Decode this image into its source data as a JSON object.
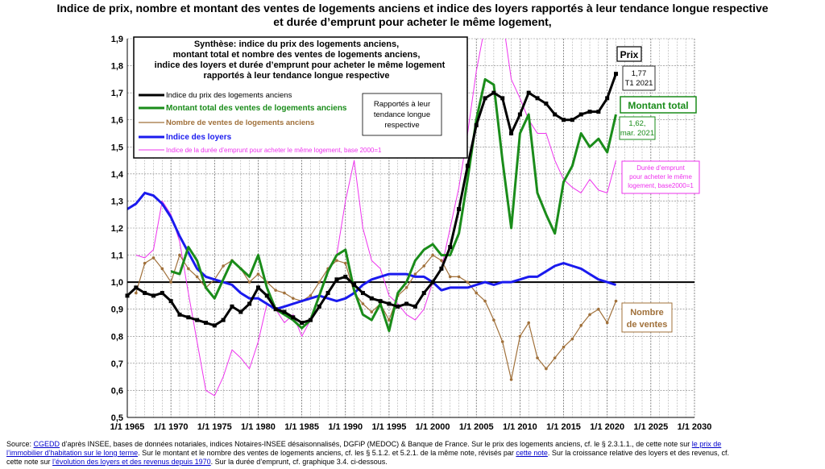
{
  "title_line1": "Indice de prix, nombre et montant des ventes de logements anciens et indice des loyers rapportés à leur tendance longue respective",
  "title_line2": "et durée d’emprunt pour acheter le même logement,",
  "source": {
    "l1_a": "Source: ",
    "l1_cgedd": "CGEDD",
    "l1_b": " d’après INSEE, bases de données notariales, indices Notaires-INSEE désaisonnalisés, DGFiP (MEDOC) & Banque de France.  Sur le prix des logements anciens, cf. le §  2.3.1.1., de cette note sur ",
    "l1_link": "le prix de",
    "l2_link": "l’immobilier d’habitation sur le long terme",
    "l2_b": ".  Sur le montant et le nombre des ventes de logements anciens, cf. les § 5.1.2. et 5.2.1. de la même note, révisés par ",
    "l2_link2": "cette note",
    "l2_c": ".  Sur la croissance relative des loyers et des revenus, cf.",
    "l3_a": "cette note sur ",
    "l3_link": "l’évolution des loyers et des revenus depuis 1970",
    "l3_b": ".  Sur la durée d’emprunt, cf. graphique 3.4. ci-dessous."
  },
  "synthese": [
    "Synthèse: indice du prix des logements anciens,",
    "montant total et nombre des ventes de logements anciens,",
    "indice des loyers et durée d’emprunt pour acheter le même logement",
    "rapportés à leur tendance longue respective"
  ],
  "rapportes_box": [
    "Rapportés à leur",
    "tendance longue",
    "respective"
  ],
  "annotations": {
    "prix": "Prix",
    "prix_value": [
      "1,77",
      "T1 2021"
    ],
    "montant": "Montant total",
    "montant_value": [
      "1,62,",
      "mar. 2021"
    ],
    "duree": [
      "Durée d’emprunt",
      "pour acheter le même",
      "logement, base2000=1"
    ],
    "nombre": [
      "Nombre",
      "de ventes"
    ]
  },
  "colors": {
    "prix": "#000000",
    "montant": "#1a8c1a",
    "nombre": "#a0703a",
    "loyers": "#1a1aee",
    "duree": "#ee33ee"
  },
  "chart_data": {
    "type": "line",
    "ylim": [
      0.5,
      1.9
    ],
    "xlim": [
      1965,
      2030
    ],
    "yticks": [
      "0,5",
      "0,6",
      "0,7",
      "0,8",
      "0,9",
      "1,0",
      "1,1",
      "1,2",
      "1,3",
      "1,4",
      "1,5",
      "1,6",
      "1,7",
      "1,8",
      "1,9"
    ],
    "xticks": [
      "1/1 1965",
      "1/1 1970",
      "1/1 1975",
      "1/1 1980",
      "1/1 1985",
      "1/1 1990",
      "1/1 1995",
      "1/1 2000",
      "1/1 2005",
      "1/1 2010",
      "1/1 2015",
      "1/1 2020",
      "1/1 2025",
      "1/1 2030"
    ],
    "series": [
      {
        "name": "Indice du prix des logements anciens",
        "key": "prix",
        "x": [
          1965,
          1966,
          1967,
          1968,
          1969,
          1970,
          1971,
          1972,
          1973,
          1974,
          1975,
          1976,
          1977,
          1978,
          1979,
          1980,
          1981,
          1982,
          1983,
          1984,
          1985,
          1986,
          1987,
          1988,
          1989,
          1990,
          1991,
          1992,
          1993,
          1994,
          1995,
          1996,
          1997,
          1998,
          1999,
          2000,
          2001,
          2002,
          2003,
          2004,
          2005,
          2006,
          2007,
          2008,
          2009,
          2010,
          2011,
          2012,
          2013,
          2014,
          2015,
          2016,
          2017,
          2018,
          2019,
          2020,
          2021
        ],
        "y": [
          0.95,
          0.98,
          0.96,
          0.95,
          0.96,
          0.93,
          0.88,
          0.87,
          0.86,
          0.85,
          0.84,
          0.86,
          0.91,
          0.89,
          0.92,
          0.98,
          0.95,
          0.9,
          0.89,
          0.87,
          0.85,
          0.86,
          0.91,
          0.96,
          1.01,
          1.02,
          0.99,
          0.96,
          0.94,
          0.93,
          0.92,
          0.91,
          0.92,
          0.91,
          0.96,
          1.0,
          1.05,
          1.13,
          1.27,
          1.43,
          1.58,
          1.68,
          1.7,
          1.68,
          1.55,
          1.62,
          1.7,
          1.68,
          1.66,
          1.62,
          1.6,
          1.6,
          1.62,
          1.63,
          1.63,
          1.68,
          1.77
        ]
      },
      {
        "name": "Montant total des ventes de logements anciens",
        "key": "montant",
        "x": [
          1970,
          1971,
          1972,
          1973,
          1974,
          1975,
          1976,
          1977,
          1978,
          1979,
          1980,
          1981,
          1982,
          1983,
          1984,
          1985,
          1986,
          1987,
          1988,
          1989,
          1990,
          1991,
          1992,
          1993,
          1994,
          1995,
          1996,
          1997,
          1998,
          1999,
          2000,
          2001,
          2002,
          2003,
          2004,
          2005,
          2006,
          2007,
          2008,
          2009,
          2010,
          2011,
          2012,
          2013,
          2014,
          2015,
          2016,
          2017,
          2018,
          2019,
          2020,
          2021
        ],
        "y": [
          1.04,
          1.03,
          1.13,
          1.08,
          0.98,
          0.94,
          1.01,
          1.08,
          1.05,
          1.02,
          1.1,
          0.98,
          0.9,
          0.88,
          0.86,
          0.83,
          0.86,
          0.95,
          1.04,
          1.1,
          1.12,
          0.97,
          0.88,
          0.86,
          0.92,
          0.82,
          0.96,
          1.0,
          1.08,
          1.12,
          1.14,
          1.1,
          1.1,
          1.18,
          1.38,
          1.6,
          1.75,
          1.73,
          1.45,
          1.2,
          1.55,
          1.62,
          1.33,
          1.25,
          1.18,
          1.37,
          1.43,
          1.55,
          1.5,
          1.53,
          1.48,
          1.62
        ]
      },
      {
        "name": "Nombre de ventes de logements anciens",
        "key": "nombre",
        "x": [
          1966,
          1967,
          1968,
          1969,
          1970,
          1971,
          1972,
          1973,
          1974,
          1975,
          1976,
          1977,
          1978,
          1979,
          1980,
          1981,
          1982,
          1983,
          1984,
          1985,
          1986,
          1987,
          1988,
          1989,
          1990,
          1991,
          1992,
          1993,
          1994,
          1995,
          1996,
          1997,
          1998,
          1999,
          2000,
          2001,
          2002,
          2003,
          2004,
          2005,
          2006,
          2007,
          2008,
          2009,
          2010,
          2011,
          2012,
          2013,
          2014,
          2015,
          2016,
          2017,
          2018,
          2019,
          2020,
          2021
        ],
        "y": [
          0.96,
          1.07,
          1.09,
          1.05,
          1.0,
          1.1,
          1.05,
          1.02,
          0.98,
          1.01,
          1.06,
          1.08,
          1.05,
          1.0,
          1.03,
          1.0,
          0.97,
          0.96,
          0.94,
          0.93,
          0.95,
          1.0,
          1.05,
          1.08,
          1.07,
          0.96,
          0.92,
          0.89,
          0.92,
          0.86,
          0.95,
          0.98,
          1.03,
          1.06,
          1.1,
          1.08,
          1.02,
          1.02,
          1.0,
          0.96,
          0.93,
          0.86,
          0.78,
          0.64,
          0.8,
          0.85,
          0.72,
          0.68,
          0.72,
          0.76,
          0.79,
          0.84,
          0.88,
          0.9,
          0.85,
          0.93
        ]
      },
      {
        "name": "Indice des loyers",
        "key": "loyers",
        "x": [
          1965,
          1966,
          1967,
          1968,
          1969,
          1970,
          1971,
          1972,
          1973,
          1974,
          1975,
          1976,
          1977,
          1978,
          1979,
          1980,
          1981,
          1982,
          1983,
          1984,
          1985,
          1986,
          1987,
          1988,
          1989,
          1990,
          1991,
          1992,
          1993,
          1994,
          1995,
          1996,
          1997,
          1998,
          1999,
          2000,
          2001,
          2002,
          2003,
          2004,
          2005,
          2006,
          2007,
          2008,
          2009,
          2010,
          2011,
          2012,
          2013,
          2014,
          2015,
          2016,
          2017,
          2018,
          2019,
          2020,
          2021
        ],
        "y": [
          1.27,
          1.29,
          1.33,
          1.32,
          1.29,
          1.24,
          1.17,
          1.11,
          1.05,
          1.02,
          1.01,
          1.0,
          0.99,
          0.96,
          0.94,
          0.94,
          0.92,
          0.9,
          0.91,
          0.92,
          0.93,
          0.94,
          0.95,
          0.94,
          0.93,
          0.94,
          0.96,
          0.99,
          1.01,
          1.02,
          1.03,
          1.03,
          1.03,
          1.02,
          1.02,
          1.0,
          0.97,
          0.98,
          0.98,
          0.98,
          0.99,
          1.0,
          0.99,
          1.0,
          1.0,
          1.01,
          1.02,
          1.02,
          1.04,
          1.06,
          1.07,
          1.06,
          1.05,
          1.03,
          1.01,
          1.0,
          0.99
        ]
      },
      {
        "name": "Indice de la durée d’emprunt pour acheter le même logement, base 2000=1",
        "key": "duree",
        "x": [
          1966,
          1967,
          1968,
          1969,
          1970,
          1971,
          1972,
          1973,
          1974,
          1975,
          1976,
          1977,
          1978,
          1979,
          1980,
          1981,
          1982,
          1983,
          1984,
          1985,
          1986,
          1987,
          1988,
          1989,
          1990,
          1991,
          1992,
          1993,
          1994,
          1995,
          1996,
          1997,
          1998,
          1999,
          2000,
          2001,
          2002,
          2003,
          2004,
          2005,
          2006,
          2007,
          2008,
          2009,
          2010,
          2011,
          2012,
          2013,
          2014,
          2015,
          2016,
          2017,
          2018,
          2019,
          2020,
          2021
        ],
        "y": [
          1.1,
          1.09,
          1.12,
          1.3,
          1.25,
          1.15,
          0.96,
          0.78,
          0.6,
          0.58,
          0.65,
          0.75,
          0.72,
          0.68,
          0.78,
          0.92,
          0.9,
          0.85,
          0.88,
          0.8,
          0.86,
          0.95,
          1.05,
          1.1,
          1.3,
          1.45,
          1.2,
          1.08,
          1.05,
          0.95,
          0.92,
          0.88,
          0.86,
          0.9,
          1.0,
          1.05,
          1.2,
          1.35,
          1.55,
          1.78,
          1.95,
          2.0,
          1.98,
          1.75,
          1.68,
          1.6,
          1.55,
          1.55,
          1.45,
          1.38,
          1.35,
          1.33,
          1.38,
          1.34,
          1.33,
          1.45
        ]
      }
    ]
  }
}
